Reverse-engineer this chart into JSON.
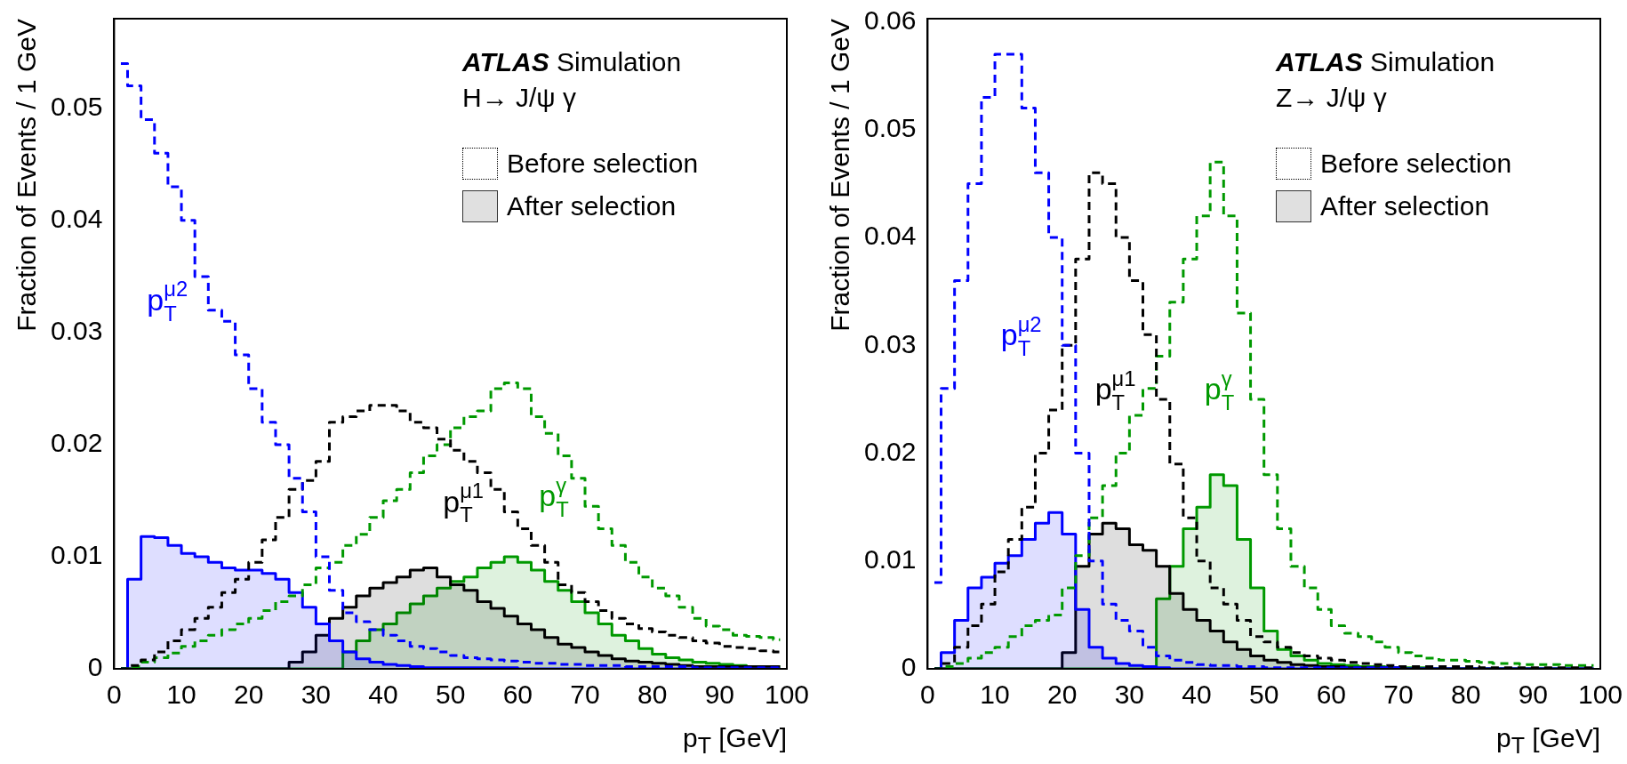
{
  "chart_data": [
    {
      "type": "step",
      "xlabel": "p$_{T}$ [GeV]",
      "ylabel": "Fraction of Events / 1 GeV",
      "xlim": [
        0,
        100
      ],
      "xticks": [
        0,
        10,
        20,
        30,
        40,
        50,
        60,
        70,
        80,
        90,
        100
      ],
      "ylim": [
        0,
        0.058
      ],
      "yticks": [
        0,
        0.01,
        0.02,
        0.03,
        0.04,
        0.05
      ],
      "x": [
        1,
        3,
        5,
        7,
        9,
        11,
        13,
        15,
        17,
        19,
        21,
        23,
        25,
        27,
        29,
        31,
        33,
        35,
        37,
        39,
        41,
        43,
        45,
        47,
        49,
        51,
        53,
        55,
        57,
        59,
        61,
        63,
        65,
        67,
        69,
        71,
        73,
        75,
        77,
        79,
        81,
        83,
        85,
        87,
        89,
        91,
        93,
        95,
        97,
        99
      ],
      "series": [
        {
          "type": "step",
          "line_style": "dashed",
          "name": "p$_{T}$$^{μ2}$",
          "color": "#0000ff",
          "values": [
            0.054,
            0.052,
            0.049,
            0.046,
            0.043,
            0.04,
            0.035,
            0.032,
            0.031,
            0.028,
            0.025,
            0.022,
            0.02,
            0.017,
            0.014,
            0.01,
            0.007,
            0.005,
            0.0042,
            0.0035,
            0.003,
            0.0025,
            0.002,
            0.0018,
            0.0015,
            0.0012,
            0.001,
            0.0009,
            0.0008,
            0.0007,
            0.0006,
            0.0005,
            0.0005,
            0.0004,
            0.0004,
            0.0003,
            0.0003,
            0.0003,
            0.0002,
            0.0002,
            0.0002,
            0.0002,
            0.0002,
            0.0001,
            0.0001,
            0.0001,
            0.0001,
            0.0001,
            0.0001,
            0.0001
          ]
        },
        {
          "type": "area",
          "line_style": "solid",
          "color": "#0000ff",
          "values": [
            0,
            0.008,
            0.0118,
            0.0117,
            0.011,
            0.0103,
            0.01,
            0.0095,
            0.009,
            0.0088,
            0.0088,
            0.0085,
            0.008,
            0.0068,
            0.0055,
            0.004,
            0.0025,
            0.0015,
            0.0009,
            0.0006,
            0.0004,
            0.0003,
            0.0002,
            0.0001,
            0.0001,
            0.0001,
            0.0001,
            0.0001,
            0.0001,
            0.0001,
            0,
            0,
            0,
            0,
            0,
            0,
            0,
            0,
            0,
            0,
            0,
            0,
            0,
            0,
            0,
            0,
            0,
            0,
            0,
            0
          ]
        },
        {
          "type": "step",
          "line_style": "dashed",
          "name": "p$_{T}$$^{μ1}$",
          "color": "#000000",
          "values": [
            0,
            0.0003,
            0.0008,
            0.0015,
            0.0025,
            0.0035,
            0.0045,
            0.0055,
            0.0068,
            0.008,
            0.0095,
            0.0115,
            0.0135,
            0.016,
            0.0168,
            0.0185,
            0.022,
            0.0225,
            0.023,
            0.0235,
            0.0235,
            0.023,
            0.022,
            0.0215,
            0.0205,
            0.0195,
            0.0185,
            0.0175,
            0.016,
            0.014,
            0.0125,
            0.011,
            0.0095,
            0.0075,
            0.0068,
            0.006,
            0.0052,
            0.0045,
            0.004,
            0.0036,
            0.0033,
            0.003,
            0.0028,
            0.0025,
            0.0023,
            0.002,
            0.0019,
            0.0018,
            0.0016,
            0.0015
          ]
        },
        {
          "type": "area",
          "line_style": "solid",
          "color": "#000000",
          "values": [
            0,
            0,
            0,
            0,
            0,
            0,
            0,
            0,
            0,
            0,
            0,
            0,
            0,
            0.0006,
            0.0015,
            0.003,
            0.0045,
            0.0055,
            0.0065,
            0.0072,
            0.0077,
            0.0082,
            0.0088,
            0.009,
            0.0082,
            0.0075,
            0.007,
            0.006,
            0.0054,
            0.0047,
            0.004,
            0.0035,
            0.0028,
            0.0022,
            0.0019,
            0.0015,
            0.0012,
            0.0009,
            0.0007,
            0.0006,
            0.0005,
            0.0004,
            0.0003,
            0.0002,
            0.0002,
            0.0002,
            0.0002,
            0.0002,
            0.0002,
            0.0002
          ]
        },
        {
          "type": "step",
          "line_style": "dashed",
          "name": "p$_{T}$$^{γ}$",
          "color": "#009900",
          "values": [
            0,
            0.0002,
            0.0006,
            0.001,
            0.0014,
            0.002,
            0.0025,
            0.003,
            0.0035,
            0.004,
            0.0045,
            0.0052,
            0.006,
            0.0065,
            0.0075,
            0.009,
            0.0095,
            0.011,
            0.012,
            0.0135,
            0.015,
            0.016,
            0.0175,
            0.019,
            0.02,
            0.0215,
            0.0225,
            0.023,
            0.025,
            0.0255,
            0.025,
            0.0225,
            0.021,
            0.019,
            0.017,
            0.0145,
            0.0125,
            0.011,
            0.0095,
            0.0082,
            0.0072,
            0.0065,
            0.0055,
            0.0045,
            0.0038,
            0.0035,
            0.003,
            0.0029,
            0.0028,
            0.0026
          ]
        },
        {
          "type": "area",
          "line_style": "solid",
          "color": "#009900",
          "values": [
            0,
            0,
            0,
            0,
            0,
            0,
            0,
            0,
            0,
            0,
            0,
            0,
            0,
            0,
            0,
            0,
            0,
            0.0015,
            0.0025,
            0.0035,
            0.004,
            0.005,
            0.0058,
            0.0065,
            0.0072,
            0.0078,
            0.0082,
            0.009,
            0.0095,
            0.01,
            0.0095,
            0.0088,
            0.0078,
            0.007,
            0.006,
            0.005,
            0.004,
            0.003,
            0.0025,
            0.0018,
            0.0013,
            0.001,
            0.0008,
            0.0006,
            0.0005,
            0.0004,
            0.0003,
            0.0002,
            0.0002,
            0.0002
          ]
        }
      ],
      "annotations": [
        "ATLAS Simulation",
        "H→ J/ψ γ",
        "Before selection",
        "After selection"
      ]
    },
    {
      "type": "step",
      "xlabel": "p$_{T}$ [GeV]",
      "ylabel": "Fraction of Events / 1 GeV",
      "xlim": [
        0,
        100
      ],
      "xticks": [
        0,
        10,
        20,
        30,
        40,
        50,
        60,
        70,
        80,
        90,
        100
      ],
      "ylim": [
        0,
        0.0603
      ],
      "yticks": [
        0,
        0.01,
        0.02,
        0.03,
        0.04,
        0.05,
        0.06
      ],
      "x": [
        1,
        3,
        5,
        7,
        9,
        11,
        13,
        15,
        17,
        19,
        21,
        23,
        25,
        27,
        29,
        31,
        33,
        35,
        37,
        39,
        41,
        43,
        45,
        47,
        49,
        51,
        53,
        55,
        57,
        59,
        61,
        63,
        65,
        67,
        69,
        71,
        73,
        75,
        77,
        79,
        81,
        83,
        85,
        87,
        89,
        91,
        93,
        95,
        97,
        99
      ],
      "series": [
        {
          "type": "step",
          "line_style": "dashed",
          "name": "p$_{T}$$^{μ2}$",
          "color": "#0000ff",
          "values": [
            0.008,
            0.026,
            0.036,
            0.045,
            0.053,
            0.057,
            0.057,
            0.052,
            0.046,
            0.04,
            0.03,
            0.02,
            0.01,
            0.006,
            0.0045,
            0.0035,
            0.002,
            0.0012,
            0.0008,
            0.0006,
            0.0004,
            0.0003,
            0.0003,
            0.0002,
            0.0002,
            0.0001,
            0.0001,
            0.0001,
            0.0001,
            0.0001,
            0.0001,
            0.0001,
            0.0001,
            0.0001,
            0.0001,
            0,
            null,
            null,
            null,
            null,
            null,
            null,
            null,
            null,
            null,
            null,
            null,
            null,
            null,
            null
          ]
        },
        {
          "type": "area",
          "line_style": "solid",
          "color": "#0000ff",
          "values": [
            0,
            0.0015,
            0.0045,
            0.0075,
            0.0085,
            0.0098,
            0.0105,
            0.012,
            0.0135,
            0.0145,
            0.0125,
            0.0055,
            0.002,
            0.001,
            0.0005,
            0.0003,
            0.0002,
            0.0001,
            0,
            0,
            0,
            0,
            0,
            0,
            0,
            0,
            0,
            0,
            0,
            0,
            0,
            0,
            0,
            0,
            0,
            0,
            0,
            0,
            0,
            0,
            0,
            0,
            0,
            0,
            0,
            0,
            0,
            0,
            0,
            0
          ]
        },
        {
          "type": "step",
          "line_style": "dashed",
          "name": "p$_{T}$$^{μ1}$",
          "color": "#000000",
          "values": [
            0,
            0.0005,
            0.002,
            0.004,
            0.006,
            0.009,
            0.012,
            0.015,
            0.02,
            0.024,
            0.03,
            0.038,
            0.046,
            0.045,
            0.04,
            0.036,
            0.031,
            0.025,
            0.019,
            0.014,
            0.01,
            0.0075,
            0.006,
            0.0045,
            0.003,
            0.0025,
            0.002,
            0.0015,
            0.0012,
            0.001,
            0.0008,
            0.0006,
            0.0005,
            0.0004,
            0.0003,
            0.0002,
            0.0002,
            0.0002,
            0.0002,
            0.0002,
            0.0002,
            0.0001,
            0.0001,
            0.0001,
            0.0001,
            0.0001,
            0.0001,
            0.0001,
            0.0001,
            0.0001
          ]
        },
        {
          "type": "area",
          "line_style": "solid",
          "color": "#000000",
          "values": [
            0,
            0,
            0,
            0,
            0,
            0,
            0,
            0,
            0,
            0,
            0.0015,
            0.0095,
            0.0125,
            0.0135,
            0.013,
            0.0115,
            0.011,
            0.0095,
            0.007,
            0.0055,
            0.0045,
            0.0035,
            0.0025,
            0.0018,
            0.0012,
            0.0008,
            0.0006,
            0.0004,
            0.0003,
            0.0002,
            0.0002,
            0.0001,
            0.0001,
            0.0001,
            0.0001,
            0,
            0,
            0,
            0,
            0,
            0,
            0,
            0,
            0,
            0,
            0,
            0,
            0,
            0,
            0
          ]
        },
        {
          "type": "step",
          "line_style": "dashed",
          "name": "p$_{T}$$^{γ}$",
          "color": "#009900",
          "values": [
            0,
            0.0002,
            0.0005,
            0.001,
            0.0015,
            0.002,
            0.003,
            0.004,
            0.0045,
            0.005,
            0.0075,
            0.0105,
            0.014,
            0.017,
            0.02,
            0.0235,
            0.026,
            0.029,
            0.034,
            0.038,
            0.042,
            0.047,
            0.042,
            0.033,
            0.025,
            0.018,
            0.013,
            0.0095,
            0.0075,
            0.0055,
            0.004,
            0.0033,
            0.003,
            0.0025,
            0.002,
            0.0015,
            0.0012,
            0.001,
            0.0008,
            0.0008,
            0.0007,
            0.0006,
            0.0005,
            0.0005,
            0.0004,
            0.0004,
            0.0004,
            0.0003,
            0.0003,
            0.0003
          ]
        },
        {
          "type": "area",
          "line_style": "solid",
          "color": "#009900",
          "values": [
            0,
            0,
            0,
            0,
            0,
            0,
            0,
            0,
            0,
            0,
            0,
            0,
            0,
            0,
            0,
            0,
            0,
            0.0065,
            0.0095,
            0.013,
            0.015,
            0.018,
            0.017,
            0.012,
            0.0075,
            0.0035,
            0.0018,
            0.0012,
            0.0008,
            0.0005,
            0.0004,
            0.0003,
            0.0002,
            0.0002,
            0.0001,
            0.0001,
            0.0001,
            0,
            0,
            0,
            0,
            0,
            0,
            0,
            0,
            0,
            0,
            0,
            0,
            0
          ]
        }
      ],
      "annotations": [
        "ATLAS Simulation",
        "Z→ J/ψ γ",
        "Before selection",
        "After selection"
      ]
    }
  ]
}
